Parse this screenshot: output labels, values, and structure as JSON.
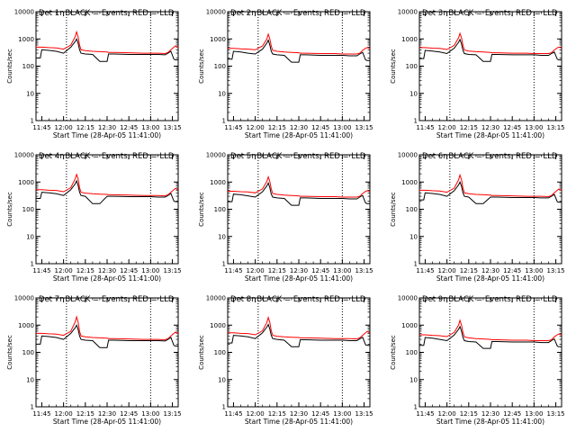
{
  "figure": {
    "shared_xlabel": "Start Time (28-Apr-05 11:41:00)",
    "shared_ylabel": "Counts/sec",
    "y_tick_labels": [
      "1",
      "10",
      "100",
      "1000",
      "10000"
    ],
    "x_tick_labels": [
      "11:45",
      "12:00",
      "12:15",
      "12:30",
      "12:45",
      "13:00",
      "13:15"
    ],
    "colors": {
      "events": "#000000",
      "lld": "#ff0000",
      "axes": "#000000",
      "background": "#ffffff"
    }
  },
  "chart_data": [
    {
      "type": "line",
      "title": "Det 1r BLACK = Events, RED = LLD",
      "xlabel": "Start Time (28-Apr-05 11:41:00)",
      "ylabel": "Counts/sec",
      "yscale": "log",
      "ylim": [
        1,
        10000
      ],
      "xlim": [
        "11:41",
        "13:19"
      ],
      "vlines": [
        "12:02",
        "13:00"
      ],
      "x": [
        "11:41",
        "11:44",
        "11:45",
        "11:50",
        "11:55",
        "12:00",
        "12:05",
        "12:08",
        "12:09",
        "12:10",
        "12:11",
        "12:12",
        "12:15",
        "12:20",
        "12:25",
        "12:30",
        "12:31",
        "12:35",
        "12:45",
        "12:55",
        "13:00",
        "13:05",
        "13:10",
        "13:12",
        "13:14",
        "13:16",
        "13:17",
        "13:19"
      ],
      "series": [
        {
          "name": "Events",
          "color": "#000000",
          "values": [
            200,
            200,
            400,
            380,
            350,
            300,
            500,
            800,
            1000,
            700,
            400,
            300,
            280,
            270,
            150,
            150,
            280,
            280,
            270,
            270,
            270,
            270,
            260,
            300,
            350,
            180,
            170,
            170
          ]
        },
        {
          "name": "LLD",
          "color": "#ff0000",
          "values": [
            500,
            500,
            500,
            480,
            470,
            420,
            600,
            1200,
            1800,
            1200,
            600,
            400,
            370,
            350,
            340,
            330,
            320,
            320,
            310,
            300,
            300,
            300,
            290,
            320,
            400,
            500,
            550,
            500
          ]
        }
      ]
    },
    {
      "type": "line",
      "title": "Det 2r BLACK = Events, RED = LLD",
      "xlabel": "Start Time (28-Apr-05 11:41:00)",
      "ylabel": "Counts/sec",
      "yscale": "log",
      "ylim": [
        1,
        10000
      ],
      "xlim": [
        "11:41",
        "13:19"
      ],
      "vlines": [
        "12:02",
        "13:00"
      ],
      "x": [
        "11:41",
        "11:44",
        "11:45",
        "11:50",
        "11:55",
        "12:00",
        "12:05",
        "12:08",
        "12:09",
        "12:10",
        "12:11",
        "12:12",
        "12:15",
        "12:20",
        "12:25",
        "12:30",
        "12:31",
        "12:35",
        "12:45",
        "12:55",
        "13:00",
        "13:05",
        "13:10",
        "13:12",
        "13:14",
        "13:16",
        "13:17",
        "13:19"
      ],
      "series": [
        {
          "name": "Events",
          "color": "#000000",
          "values": [
            180,
            180,
            350,
            330,
            300,
            280,
            420,
            700,
            900,
            600,
            350,
            280,
            260,
            250,
            140,
            140,
            260,
            260,
            250,
            250,
            250,
            240,
            240,
            280,
            320,
            170,
            160,
            160
          ]
        },
        {
          "name": "LLD",
          "color": "#ff0000",
          "values": [
            450,
            450,
            450,
            430,
            420,
            400,
            550,
            1000,
            1500,
            1000,
            550,
            380,
            350,
            330,
            320,
            310,
            300,
            300,
            290,
            290,
            280,
            280,
            280,
            300,
            380,
            450,
            480,
            450
          ]
        }
      ]
    },
    {
      "type": "line",
      "title": "Det 3r BLACK = Events, RED = LLD",
      "xlabel": "Start Time (28-Apr-05 11:41:00)",
      "ylabel": "Counts/sec",
      "yscale": "log",
      "ylim": [
        1,
        10000
      ],
      "xlim": [
        "11:41",
        "13:19"
      ],
      "vlines": [
        "12:02",
        "13:00"
      ],
      "x": [
        "11:41",
        "11:44",
        "11:45",
        "11:50",
        "11:55",
        "12:00",
        "12:05",
        "12:08",
        "12:09",
        "12:10",
        "12:11",
        "12:12",
        "12:15",
        "12:20",
        "12:25",
        "12:30",
        "12:31",
        "12:35",
        "12:45",
        "12:55",
        "13:00",
        "13:05",
        "13:10",
        "13:12",
        "13:14",
        "13:16",
        "13:17",
        "13:19"
      ],
      "series": [
        {
          "name": "Events",
          "color": "#000000",
          "values": [
            190,
            190,
            380,
            360,
            330,
            290,
            460,
            750,
            950,
            650,
            380,
            290,
            270,
            260,
            150,
            150,
            270,
            270,
            260,
            260,
            260,
            250,
            250,
            290,
            330,
            180,
            170,
            170
          ]
        },
        {
          "name": "LLD",
          "color": "#ff0000",
          "values": [
            480,
            480,
            480,
            460,
            450,
            410,
            580,
            1100,
            1600,
            1100,
            580,
            390,
            360,
            340,
            330,
            320,
            310,
            310,
            300,
            300,
            290,
            290,
            290,
            310,
            390,
            470,
            500,
            470
          ]
        }
      ]
    },
    {
      "type": "line",
      "title": "Det 4r BLACK = Events, RED = LLD",
      "xlabel": "Start Time (28-Apr-05 11:41:00)",
      "ylabel": "Counts/sec",
      "yscale": "log",
      "ylim": [
        1,
        10000
      ],
      "xlim": [
        "11:41",
        "13:19"
      ],
      "vlines": [
        "12:02",
        "13:00"
      ],
      "x": [
        "11:41",
        "11:44",
        "11:45",
        "11:50",
        "11:55",
        "12:00",
        "12:05",
        "12:08",
        "12:09",
        "12:10",
        "12:11",
        "12:12",
        "12:15",
        "12:20",
        "12:25",
        "12:30",
        "12:31",
        "12:35",
        "12:45",
        "12:55",
        "13:00",
        "13:05",
        "13:10",
        "13:12",
        "13:14",
        "13:16",
        "13:17",
        "13:19"
      ],
      "series": [
        {
          "name": "Events",
          "color": "#000000",
          "values": [
            250,
            250,
            420,
            400,
            370,
            320,
            520,
            850,
            1100,
            750,
            420,
            320,
            300,
            160,
            160,
            300,
            300,
            300,
            290,
            290,
            290,
            280,
            280,
            320,
            380,
            200,
            190,
            190
          ]
        },
        {
          "name": "LLD",
          "color": "#ff0000",
          "values": [
            520,
            520,
            520,
            500,
            490,
            440,
            620,
            1300,
            1900,
            1300,
            620,
            420,
            390,
            370,
            360,
            350,
            340,
            340,
            330,
            320,
            320,
            320,
            310,
            340,
            420,
            520,
            580,
            520
          ]
        }
      ]
    },
    {
      "type": "line",
      "title": "Det 5r BLACK = Events, RED = LLD",
      "xlabel": "Start Time (28-Apr-05 11:41:00)",
      "ylabel": "Counts/sec",
      "yscale": "log",
      "ylim": [
        1,
        10000
      ],
      "xlim": [
        "11:41",
        "13:19"
      ],
      "vlines": [
        "12:02",
        "13:00"
      ],
      "x": [
        "11:41",
        "11:44",
        "11:45",
        "11:50",
        "11:55",
        "12:00",
        "12:05",
        "12:08",
        "12:09",
        "12:10",
        "12:11",
        "12:12",
        "12:15",
        "12:20",
        "12:25",
        "12:30",
        "12:31",
        "12:35",
        "12:45",
        "12:55",
        "13:00",
        "13:05",
        "13:10",
        "13:12",
        "13:14",
        "13:16",
        "13:17",
        "13:19"
      ],
      "series": [
        {
          "name": "Events",
          "color": "#000000",
          "values": [
            190,
            190,
            360,
            340,
            310,
            280,
            440,
            720,
            920,
            620,
            360,
            280,
            260,
            250,
            140,
            140,
            260,
            260,
            250,
            250,
            250,
            240,
            240,
            280,
            320,
            170,
            160,
            160
          ]
        },
        {
          "name": "LLD",
          "color": "#ff0000",
          "values": [
            460,
            460,
            460,
            440,
            430,
            400,
            560,
            1050,
            1550,
            1050,
            560,
            380,
            350,
            330,
            320,
            310,
            300,
            300,
            290,
            290,
            280,
            280,
            280,
            300,
            380,
            450,
            480,
            450
          ]
        }
      ]
    },
    {
      "type": "line",
      "title": "Det 6r BLACK = Events, RED = LLD",
      "xlabel": "Start Time (28-Apr-05 11:41:00)",
      "ylabel": "Counts/sec",
      "yscale": "log",
      "ylim": [
        1,
        10000
      ],
      "xlim": [
        "11:41",
        "13:19"
      ],
      "vlines": [
        "12:02",
        "13:00"
      ],
      "x": [
        "11:41",
        "11:44",
        "11:45",
        "11:50",
        "11:55",
        "12:00",
        "12:05",
        "12:08",
        "12:09",
        "12:10",
        "12:11",
        "12:12",
        "12:15",
        "12:20",
        "12:25",
        "12:30",
        "12:31",
        "12:35",
        "12:45",
        "12:55",
        "13:00",
        "13:05",
        "13:10",
        "13:12",
        "13:14",
        "13:16",
        "13:17",
        "13:19"
      ],
      "series": [
        {
          "name": "Events",
          "color": "#000000",
          "values": [
            220,
            220,
            400,
            380,
            350,
            300,
            480,
            780,
            1000,
            700,
            400,
            300,
            280,
            160,
            160,
            280,
            280,
            280,
            270,
            270,
            270,
            260,
            260,
            300,
            350,
            190,
            180,
            180
          ]
        },
        {
          "name": "LLD",
          "color": "#ff0000",
          "values": [
            500,
            500,
            500,
            480,
            470,
            420,
            600,
            1200,
            1800,
            1200,
            600,
            400,
            370,
            350,
            340,
            330,
            320,
            320,
            310,
            300,
            300,
            300,
            290,
            320,
            400,
            500,
            550,
            500
          ]
        }
      ]
    },
    {
      "type": "line",
      "title": "Det 7r BLACK = Events, RED = LLD",
      "xlabel": "Start Time (28-Apr-05 11:41:00)",
      "ylabel": "Counts/sec",
      "yscale": "log",
      "ylim": [
        1,
        10000
      ],
      "xlim": [
        "11:41",
        "13:19"
      ],
      "vlines": [
        "12:02",
        "13:00"
      ],
      "x": [
        "11:41",
        "11:44",
        "11:45",
        "11:50",
        "11:55",
        "12:00",
        "12:05",
        "12:08",
        "12:09",
        "12:10",
        "12:11",
        "12:12",
        "12:15",
        "12:20",
        "12:25",
        "12:30",
        "12:31",
        "12:35",
        "12:45",
        "12:55",
        "13:00",
        "13:05",
        "13:10",
        "13:12",
        "13:14",
        "13:16",
        "13:17",
        "13:19"
      ],
      "series": [
        {
          "name": "Events",
          "color": "#000000",
          "values": [
            200,
            200,
            400,
            380,
            350,
            300,
            500,
            800,
            1000,
            700,
            400,
            300,
            280,
            270,
            150,
            150,
            280,
            280,
            270,
            270,
            270,
            270,
            260,
            300,
            350,
            180,
            170,
            170
          ]
        },
        {
          "name": "LLD",
          "color": "#ff0000",
          "values": [
            500,
            500,
            500,
            480,
            470,
            420,
            600,
            1300,
            2000,
            1300,
            600,
            400,
            370,
            350,
            340,
            330,
            320,
            320,
            310,
            300,
            300,
            300,
            290,
            320,
            400,
            500,
            550,
            500
          ]
        }
      ]
    },
    {
      "type": "line",
      "title": "Det 8r BLACK = Events, RED = LLD",
      "xlabel": "Start Time (28-Apr-05 11:41:00)",
      "ylabel": "Counts/sec",
      "yscale": "log",
      "ylim": [
        1,
        10000
      ],
      "xlim": [
        "11:41",
        "13:19"
      ],
      "vlines": [
        "12:02",
        "13:00"
      ],
      "x": [
        "11:41",
        "11:44",
        "11:45",
        "11:50",
        "11:55",
        "12:00",
        "12:05",
        "12:08",
        "12:09",
        "12:10",
        "12:11",
        "12:12",
        "12:15",
        "12:20",
        "12:25",
        "12:30",
        "12:31",
        "12:35",
        "12:45",
        "12:55",
        "13:00",
        "13:05",
        "13:10",
        "13:12",
        "13:14",
        "13:16",
        "13:17",
        "13:19"
      ],
      "series": [
        {
          "name": "Events",
          "color": "#000000",
          "values": [
            220,
            220,
            420,
            400,
            370,
            320,
            520,
            850,
            1050,
            720,
            420,
            320,
            300,
            280,
            160,
            160,
            290,
            290,
            280,
            280,
            280,
            270,
            270,
            310,
            360,
            190,
            180,
            180
          ]
        },
        {
          "name": "LLD",
          "color": "#ff0000",
          "values": [
            520,
            520,
            520,
            500,
            490,
            440,
            620,
            1250,
            1900,
            1250,
            620,
            420,
            390,
            370,
            360,
            350,
            340,
            340,
            330,
            320,
            320,
            320,
            310,
            340,
            420,
            520,
            580,
            520
          ]
        }
      ]
    },
    {
      "type": "line",
      "title": "Det 9r BLACK = Events, RED = LLD",
      "xlabel": "Start Time (28-Apr-05 11:41:00)",
      "ylabel": "Counts/sec",
      "yscale": "log",
      "ylim": [
        1,
        10000
      ],
      "xlim": [
        "11:41",
        "13:19"
      ],
      "vlines": [
        "12:02",
        "13:00"
      ],
      "x": [
        "11:41",
        "11:44",
        "11:45",
        "11:50",
        "11:55",
        "12:00",
        "12:05",
        "12:08",
        "12:09",
        "12:10",
        "12:11",
        "12:12",
        "12:15",
        "12:20",
        "12:25",
        "12:30",
        "12:31",
        "12:35",
        "12:45",
        "12:55",
        "13:00",
        "13:05",
        "13:10",
        "13:12",
        "13:14",
        "13:16",
        "13:17",
        "13:19"
      ],
      "series": [
        {
          "name": "Events",
          "color": "#000000",
          "values": [
            180,
            180,
            350,
            330,
            300,
            270,
            430,
            700,
            880,
            600,
            350,
            270,
            250,
            240,
            140,
            140,
            250,
            250,
            240,
            240,
            240,
            230,
            230,
            270,
            310,
            170,
            160,
            160
          ]
        },
        {
          "name": "LLD",
          "color": "#ff0000",
          "values": [
            440,
            440,
            440,
            420,
            410,
            380,
            540,
            1000,
            1500,
            1000,
            540,
            370,
            340,
            320,
            310,
            300,
            290,
            290,
            280,
            280,
            270,
            270,
            270,
            290,
            370,
            440,
            470,
            440
          ]
        }
      ]
    }
  ]
}
